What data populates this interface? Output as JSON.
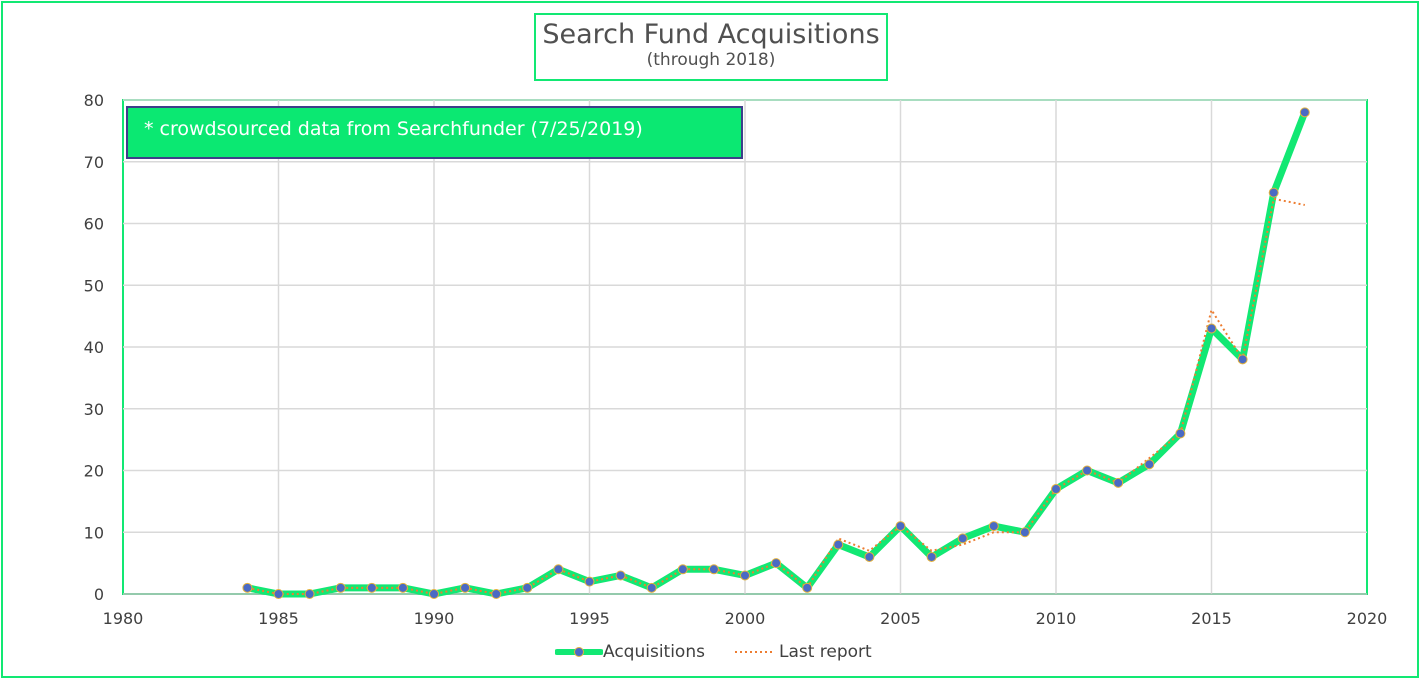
{
  "chart_data": {
    "type": "line",
    "title": "Search Fund Acquisitions",
    "subtitle": "(through 2018)",
    "annotation": "* crowdsourced data from Searchfunder  (7/25/2019)",
    "xlim": [
      1980,
      2020
    ],
    "ylim": [
      0,
      80
    ],
    "x_ticks": [
      "1980",
      "1985",
      "1990",
      "1995",
      "2000",
      "2005",
      "2010",
      "2015",
      "2020"
    ],
    "y_ticks": [
      "0",
      "10",
      "20",
      "30",
      "40",
      "50",
      "60",
      "70",
      "80"
    ],
    "grid": true,
    "legend_position": "bottom",
    "series": [
      {
        "name": "Acquisitions",
        "color": "#12e873",
        "marker_color": "#4a6ac4",
        "x": [
          1984,
          1985,
          1986,
          1987,
          1988,
          1989,
          1990,
          1991,
          1992,
          1993,
          1994,
          1995,
          1996,
          1997,
          1998,
          1999,
          2000,
          2001,
          2002,
          2003,
          2004,
          2005,
          2006,
          2007,
          2008,
          2009,
          2010,
          2011,
          2012,
          2013,
          2014,
          2015,
          2016,
          2017,
          2018
        ],
        "values": [
          1,
          0,
          0,
          1,
          1,
          1,
          0,
          1,
          0,
          1,
          4,
          2,
          3,
          1,
          4,
          4,
          3,
          5,
          1,
          8,
          6,
          11,
          6,
          9,
          11,
          10,
          17,
          20,
          18,
          21,
          26,
          43,
          38,
          65,
          78
        ]
      },
      {
        "name": "Last report",
        "color": "#ed7d31",
        "x": [
          1984,
          1985,
          1986,
          1987,
          1988,
          1989,
          1990,
          1991,
          1992,
          1993,
          1994,
          1995,
          1996,
          1997,
          1998,
          1999,
          2000,
          2001,
          2002,
          2003,
          2004,
          2005,
          2006,
          2007,
          2008,
          2009,
          2010,
          2011,
          2012,
          2013,
          2014,
          2015,
          2016,
          2017,
          2018
        ],
        "values": [
          1,
          0,
          0,
          1,
          1,
          1,
          0,
          1,
          0,
          1,
          4,
          2,
          3,
          1,
          4,
          4,
          3,
          5,
          1,
          9,
          7,
          11,
          7,
          8,
          10,
          10,
          17,
          20,
          18,
          22,
          26,
          46,
          38,
          64,
          63
        ]
      }
    ]
  }
}
